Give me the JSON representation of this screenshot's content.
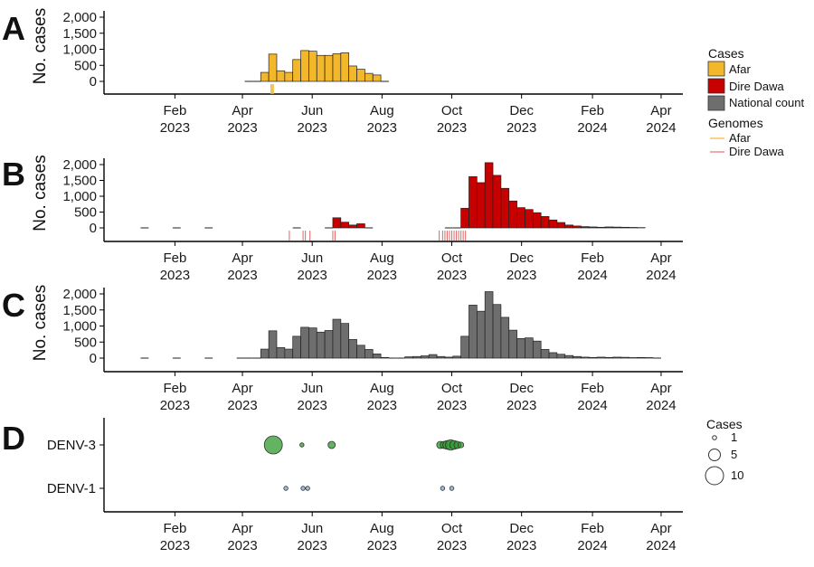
{
  "figure": {
    "colors": {
      "afar": "#f2b72b",
      "dire_dawa": "#c70000",
      "national": "#6e6e6e",
      "denv3": "#2e9a2e",
      "denv1": "#7ea6cf"
    },
    "legend": {
      "cases_title": "Cases",
      "cases_items": [
        "Afar",
        "Dire Dawa",
        "National count"
      ],
      "genomes_title": "Genomes",
      "genomes_items": [
        "Afar",
        "Dire Dawa"
      ],
      "size_title": "Cases",
      "size_items": [
        "1",
        "5",
        "10"
      ]
    }
  },
  "chart_data": [
    {
      "panel": "A",
      "type": "bar",
      "ylabel": "No. cases",
      "yticks": [
        "2,000",
        "1,500",
        "1,000",
        "500",
        "0"
      ],
      "ylim": [
        0,
        2100
      ],
      "xticks": [
        [
          "Feb",
          "2023"
        ],
        [
          "Apr",
          "2023"
        ],
        [
          "Jun",
          "2023"
        ],
        [
          "Aug",
          "2023"
        ],
        [
          "Oct",
          "2023"
        ],
        [
          "Dec",
          "2023"
        ],
        [
          "Feb",
          "2024"
        ],
        [
          "Apr",
          "2024"
        ]
      ],
      "series": [
        {
          "name": "Afar",
          "values": [
            [
              "2023-04-03",
              0
            ],
            [
              "2023-04-10",
              0
            ],
            [
              "2023-04-17",
              280
            ],
            [
              "2023-04-24",
              850
            ],
            [
              "2023-05-01",
              330
            ],
            [
              "2023-05-08",
              280
            ],
            [
              "2023-05-15",
              680
            ],
            [
              "2023-05-22",
              960
            ],
            [
              "2023-05-29",
              940
            ],
            [
              "2023-06-05",
              810
            ],
            [
              "2023-06-12",
              810
            ],
            [
              "2023-06-19",
              860
            ],
            [
              "2023-06-26",
              890
            ],
            [
              "2023-07-03",
              480
            ],
            [
              "2023-07-10",
              380
            ],
            [
              "2023-07-17",
              250
            ],
            [
              "2023-07-24",
              200
            ],
            [
              "2023-07-31",
              0
            ]
          ]
        }
      ],
      "genomes": [
        {
          "name": "Afar",
          "dates": [
            "2023-04-26",
            "2023-04-27",
            "2023-04-28"
          ]
        }
      ]
    },
    {
      "panel": "B",
      "type": "bar",
      "ylabel": "No. cases",
      "yticks": [
        "2,000",
        "1,500",
        "1,000",
        "500",
        "0"
      ],
      "ylim": [
        0,
        2100
      ],
      "xticks": [
        [
          "Feb",
          "2023"
        ],
        [
          "Apr",
          "2023"
        ],
        [
          "Jun",
          "2023"
        ],
        [
          "Aug",
          "2023"
        ],
        [
          "Oct",
          "2023"
        ],
        [
          "Dec",
          "2023"
        ],
        [
          "Feb",
          "2024"
        ],
        [
          "Apr",
          "2024"
        ]
      ],
      "series": [
        {
          "name": "Dire Dawa",
          "values": [
            [
              "2023-01-02",
              0
            ],
            [
              "2023-01-30",
              0
            ],
            [
              "2023-02-27",
              0
            ],
            [
              "2023-05-15",
              0
            ],
            [
              "2023-06-12",
              0
            ],
            [
              "2023-06-19",
              320
            ],
            [
              "2023-06-26",
              180
            ],
            [
              "2023-07-03",
              90
            ],
            [
              "2023-07-10",
              130
            ],
            [
              "2023-07-17",
              0
            ],
            [
              "2023-09-25",
              0
            ],
            [
              "2023-10-02",
              0
            ],
            [
              "2023-10-09",
              620
            ],
            [
              "2023-10-16",
              1620
            ],
            [
              "2023-10-23",
              1430
            ],
            [
              "2023-10-30",
              2060
            ],
            [
              "2023-11-06",
              1660
            ],
            [
              "2023-11-13",
              1250
            ],
            [
              "2023-11-20",
              850
            ],
            [
              "2023-11-27",
              640
            ],
            [
              "2023-12-04",
              580
            ],
            [
              "2023-12-11",
              480
            ],
            [
              "2023-12-18",
              360
            ],
            [
              "2023-12-25",
              250
            ],
            [
              "2024-01-01",
              170
            ],
            [
              "2024-01-08",
              90
            ],
            [
              "2024-01-15",
              60
            ],
            [
              "2024-01-22",
              40
            ],
            [
              "2024-01-29",
              30
            ],
            [
              "2024-02-05",
              20
            ],
            [
              "2024-02-12",
              30
            ],
            [
              "2024-02-19",
              25
            ],
            [
              "2024-02-26",
              20
            ],
            [
              "2024-03-04",
              15
            ],
            [
              "2024-03-11",
              10
            ]
          ]
        }
      ],
      "genomes": [
        {
          "name": "Dire Dawa",
          "dates": [
            "2023-05-12",
            "2023-05-24",
            "2023-05-26",
            "2023-05-30",
            "2023-06-19",
            "2023-06-21",
            "2023-09-20",
            "2023-09-23",
            "2023-09-25",
            "2023-09-27",
            "2023-09-29",
            "2023-10-01",
            "2023-10-03",
            "2023-10-05",
            "2023-10-07",
            "2023-10-09",
            "2023-10-11",
            "2023-10-13"
          ]
        }
      ]
    },
    {
      "panel": "C",
      "type": "bar",
      "ylabel": "No. cases",
      "yticks": [
        "2,000",
        "1,500",
        "1,000",
        "500",
        "0"
      ],
      "ylim": [
        0,
        2100
      ],
      "xticks": [
        [
          "Feb",
          "2023"
        ],
        [
          "Apr",
          "2023"
        ],
        [
          "Jun",
          "2023"
        ],
        [
          "Aug",
          "2023"
        ],
        [
          "Oct",
          "2023"
        ],
        [
          "Dec",
          "2023"
        ],
        [
          "Feb",
          "2024"
        ],
        [
          "Apr",
          "2024"
        ]
      ],
      "series": [
        {
          "name": "National count",
          "values": [
            [
              "2023-01-02",
              0
            ],
            [
              "2023-01-30",
              0
            ],
            [
              "2023-02-27",
              0
            ],
            [
              "2023-03-27",
              0
            ],
            [
              "2023-04-03",
              0
            ],
            [
              "2023-04-10",
              0
            ],
            [
              "2023-04-17",
              280
            ],
            [
              "2023-04-24",
              850
            ],
            [
              "2023-05-01",
              330
            ],
            [
              "2023-05-08",
              280
            ],
            [
              "2023-05-15",
              680
            ],
            [
              "2023-05-22",
              960
            ],
            [
              "2023-05-29",
              940
            ],
            [
              "2023-06-05",
              810
            ],
            [
              "2023-06-12",
              860
            ],
            [
              "2023-06-19",
              1210
            ],
            [
              "2023-06-26",
              1080
            ],
            [
              "2023-07-03",
              580
            ],
            [
              "2023-07-10",
              400
            ],
            [
              "2023-07-17",
              270
            ],
            [
              "2023-07-24",
              130
            ],
            [
              "2023-07-31",
              20
            ],
            [
              "2023-08-07",
              0
            ],
            [
              "2023-08-14",
              0
            ],
            [
              "2023-08-21",
              40
            ],
            [
              "2023-08-28",
              50
            ],
            [
              "2023-09-04",
              70
            ],
            [
              "2023-09-11",
              110
            ],
            [
              "2023-09-18",
              50
            ],
            [
              "2023-09-25",
              30
            ],
            [
              "2023-10-02",
              60
            ],
            [
              "2023-10-09",
              680
            ],
            [
              "2023-10-16",
              1650
            ],
            [
              "2023-10-23",
              1460
            ],
            [
              "2023-10-30",
              2070
            ],
            [
              "2023-11-06",
              1670
            ],
            [
              "2023-11-13",
              1270
            ],
            [
              "2023-11-20",
              870
            ],
            [
              "2023-11-27",
              610
            ],
            [
              "2023-12-04",
              630
            ],
            [
              "2023-12-11",
              530
            ],
            [
              "2023-12-18",
              270
            ],
            [
              "2023-12-25",
              170
            ],
            [
              "2024-01-01",
              120
            ],
            [
              "2024-01-08",
              80
            ],
            [
              "2024-01-15",
              50
            ],
            [
              "2024-01-22",
              30
            ],
            [
              "2024-01-29",
              20
            ],
            [
              "2024-02-05",
              30
            ],
            [
              "2024-02-12",
              20
            ],
            [
              "2024-02-19",
              30
            ],
            [
              "2024-02-26",
              25
            ],
            [
              "2024-03-04",
              15
            ],
            [
              "2024-03-11",
              20
            ],
            [
              "2024-03-18",
              15
            ],
            [
              "2024-03-25",
              0
            ]
          ]
        }
      ]
    },
    {
      "panel": "D",
      "type": "scatter",
      "categories": [
        "DENV-3",
        "DENV-1"
      ],
      "xticks": [
        [
          "Feb",
          "2023"
        ],
        [
          "Apr",
          "2023"
        ],
        [
          "Jun",
          "2023"
        ],
        [
          "Aug",
          "2023"
        ],
        [
          "Oct",
          "2023"
        ],
        [
          "Dec",
          "2023"
        ],
        [
          "Feb",
          "2024"
        ],
        [
          "Apr",
          "2024"
        ]
      ],
      "series": [
        {
          "name": "DENV-3",
          "points": [
            [
              "2023-04-28",
              10
            ],
            [
              "2023-05-23",
              1
            ],
            [
              "2023-06-18",
              3
            ],
            [
              "2023-09-21",
              3
            ],
            [
              "2023-09-24",
              3
            ],
            [
              "2023-09-27",
              4
            ],
            [
              "2023-09-30",
              5
            ],
            [
              "2023-10-03",
              4
            ],
            [
              "2023-10-06",
              3
            ],
            [
              "2023-10-09",
              2
            ]
          ]
        },
        {
          "name": "DENV-1",
          "points": [
            [
              "2023-05-09",
              1
            ],
            [
              "2023-05-24",
              1
            ],
            [
              "2023-05-28",
              1
            ],
            [
              "2023-09-23",
              1
            ],
            [
              "2023-10-01",
              1
            ]
          ]
        }
      ]
    }
  ]
}
